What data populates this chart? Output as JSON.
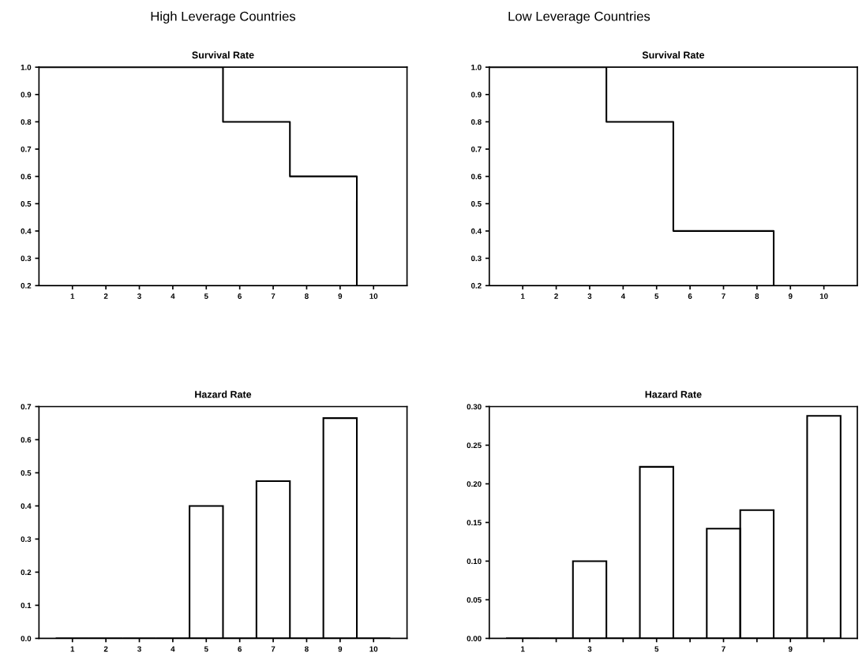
{
  "chart_data": [
    {
      "type": "step",
      "title": "High Leverage Countries",
      "subtitle": "Survival Rate",
      "x": [
        0,
        5.5,
        7.5,
        9.5
      ],
      "values": [
        1.0,
        0.8,
        0.6,
        0.2
      ],
      "color": "#000000",
      "xlim": [
        0,
        11
      ],
      "xticks": [
        1,
        2,
        3,
        4,
        5,
        6,
        7,
        8,
        9,
        10
      ],
      "ylim": [
        0.2,
        1.0
      ],
      "yticks": [
        0.2,
        0.3,
        0.4,
        0.5,
        0.6,
        0.7,
        0.8,
        0.9,
        {
          "value": 1.0,
          "label": "1.0"
        }
      ]
    },
    {
      "type": "step",
      "title": "Low Leverage Countries",
      "subtitle": "Survival Rate",
      "x": [
        0,
        3.5,
        5.5,
        8.5
      ],
      "values": [
        1.0,
        0.8,
        0.4,
        0.2
      ],
      "color": "#000000",
      "xlim": [
        0,
        11
      ],
      "xticks": [
        1,
        2,
        3,
        4,
        5,
        6,
        7,
        8,
        9,
        10
      ],
      "ylim": [
        0.2,
        1.0
      ],
      "yticks": [
        0.2,
        0.3,
        0.4,
        0.5,
        0.6,
        0.7,
        0.8,
        0.9,
        {
          "value": 1.0,
          "label": "1.0"
        }
      ]
    },
    {
      "type": "bar",
      "title": "Hazard Rate",
      "x": [
        1,
        2,
        3,
        4,
        5,
        6,
        7,
        8,
        9,
        10
      ],
      "values": [
        0,
        0,
        0,
        0,
        0.4,
        0,
        0.475,
        0,
        0.665,
        0
      ],
      "color": "#000000",
      "xlim": [
        0,
        11
      ],
      "xticks": [
        1,
        2,
        3,
        4,
        5,
        6,
        7,
        8,
        9,
        10
      ],
      "ylim": [
        0,
        0.7
      ],
      "yticks": [
        {
          "value": 0,
          "label": "0.0"
        },
        0.1,
        0.2,
        0.3,
        0.4,
        0.5,
        0.6,
        0.7
      ]
    },
    {
      "type": "bar",
      "title": "Hazard Rate",
      "x": [
        1,
        2,
        3,
        4,
        5,
        6,
        7,
        8,
        9,
        10
      ],
      "values": [
        0,
        0,
        0.1,
        0,
        0.222,
        0,
        0.142,
        0.166,
        0,
        0.288
      ],
      "color": "#000000",
      "xlim": [
        0,
        11
      ],
      "xticks": [
        1,
        {
          "value": 2,
          "label": null
        },
        3,
        {
          "value": 4,
          "label": null
        },
        5,
        {
          "value": 6,
          "label": null
        },
        7,
        {
          "value": 8,
          "label": null
        },
        9,
        {
          "value": 10,
          "label": null
        }
      ],
      "ylim": [
        0,
        0.3
      ],
      "yticks": [
        {
          "value": 0,
          "label": "0.00"
        },
        0.05,
        {
          "value": 0.1,
          "label": "0.10"
        },
        0.15,
        {
          "value": 0.2,
          "label": "0.20"
        },
        0.25,
        {
          "value": 0.3,
          "label": "0.30"
        }
      ]
    }
  ]
}
